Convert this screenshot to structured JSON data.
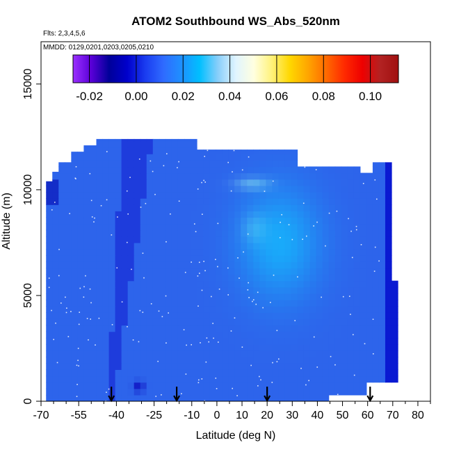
{
  "chart_data": {
    "type": "heatmap",
    "title": "ATOM2 Southbound WS_Abs_520nm",
    "flights_label": "Flts: 2,3,4,5,6",
    "dates_label": "MMDD: 0129,0201,0203,0205,0210",
    "xlabel": "Latitude (deg N)",
    "ylabel": "Altitude (m)",
    "xlim": [
      -70,
      85
    ],
    "ylim": [
      0,
      17000
    ],
    "x_tick_labels": [
      "-70",
      "-55",
      "-40",
      "-25",
      "-10",
      "0",
      "10",
      "20",
      "30",
      "40",
      "50",
      "60",
      "70",
      "80"
    ],
    "x_tick_values": [
      -70,
      -55,
      -40,
      -25,
      -10,
      0,
      10,
      20,
      30,
      40,
      50,
      60,
      70,
      80
    ],
    "y_tick_labels": [
      "0",
      "5000",
      "10000",
      "15000"
    ],
    "y_tick_values": [
      0,
      5000,
      10000,
      15000
    ],
    "colorbar": {
      "min": -0.027,
      "max": 0.112,
      "tick_labels": [
        "-0.02",
        "0.00",
        "0.02",
        "0.04",
        "0.06",
        "0.08",
        "0.10"
      ],
      "tick_values": [
        -0.02,
        0.0,
        0.02,
        0.04,
        0.06,
        0.08,
        0.1
      ],
      "colors": [
        "#9b30ff",
        "#5a00d8",
        "#000099",
        "#0000cc",
        "#1a3cf0",
        "#2f6bff",
        "#1e90ff",
        "#00bfff",
        "#87cefa",
        "#e0f4ff",
        "#ffffe0",
        "#fff27a",
        "#ffd700",
        "#ffa500",
        "#ff6a00",
        "#ff2a00",
        "#ee0000",
        "#b22222",
        "#a01010"
      ]
    },
    "arrows_latitude": [
      -42,
      -16,
      20,
      61
    ],
    "grid": false,
    "legend_placement": "top"
  }
}
